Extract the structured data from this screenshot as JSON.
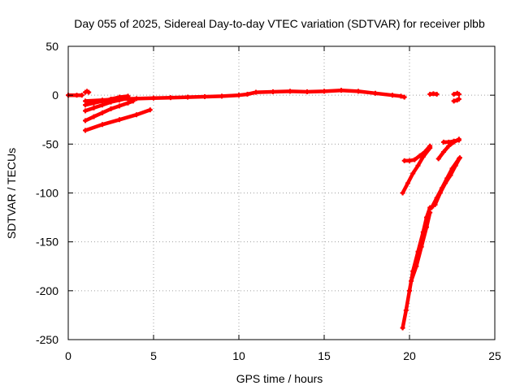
{
  "chart_data": {
    "type": "scatter",
    "title": "Day 055 of 2025, Sidereal Day-to-day VTEC variation (SDTVAR) for receiver plbb",
    "xlabel": "GPS time / hours",
    "ylabel": "SDTVAR / TECUs",
    "xlim": [
      0,
      25
    ],
    "ylim": [
      -250,
      50
    ],
    "xticks": [
      0,
      5,
      10,
      15,
      20,
      25
    ],
    "yticks": [
      50,
      0,
      -50,
      -100,
      -150,
      -200,
      -250
    ],
    "grid": true,
    "color": "#ff0000",
    "series": [
      {
        "values": [
          [
            0.0,
            0
          ],
          [
            0.5,
            0
          ],
          [
            0.8,
            0
          ]
        ]
      },
      {
        "values": [
          [
            1.0,
            3
          ],
          [
            1.1,
            4
          ],
          [
            1.2,
            3
          ]
        ]
      },
      {
        "values": [
          [
            1.0,
            -6
          ],
          [
            2.0,
            -5
          ],
          [
            3.0,
            -4
          ],
          [
            4.0,
            -3.5
          ],
          [
            5.0,
            -3
          ],
          [
            6.0,
            -2.5
          ],
          [
            7.0,
            -2
          ],
          [
            8.0,
            -1.5
          ],
          [
            9.0,
            -1
          ],
          [
            10.0,
            0
          ],
          [
            10.5,
            1
          ],
          [
            11.0,
            3
          ],
          [
            12.0,
            3.5
          ],
          [
            13.0,
            4
          ],
          [
            14.0,
            3.5
          ],
          [
            15.0,
            4
          ],
          [
            16.0,
            5
          ],
          [
            17.0,
            4
          ],
          [
            18.0,
            2
          ],
          [
            19.0,
            0
          ],
          [
            19.5,
            -1
          ],
          [
            19.7,
            -2
          ]
        ]
      },
      {
        "values": [
          [
            1.0,
            -10
          ],
          [
            1.5,
            -8
          ],
          [
            2.0,
            -6
          ],
          [
            2.5,
            -4
          ],
          [
            3.0,
            -2
          ],
          [
            3.5,
            -1
          ]
        ]
      },
      {
        "values": [
          [
            1.0,
            -16
          ],
          [
            1.5,
            -13
          ],
          [
            2.0,
            -10
          ],
          [
            2.5,
            -7
          ],
          [
            3.0,
            -5
          ],
          [
            3.5,
            -3
          ]
        ]
      },
      {
        "values": [
          [
            1.0,
            -26
          ],
          [
            1.5,
            -22
          ],
          [
            2.0,
            -18
          ],
          [
            2.5,
            -14
          ],
          [
            3.0,
            -11
          ],
          [
            3.5,
            -8
          ],
          [
            3.8,
            -6
          ]
        ]
      },
      {
        "values": [
          [
            1.0,
            -36
          ],
          [
            2.0,
            -30
          ],
          [
            3.0,
            -25
          ],
          [
            4.0,
            -20
          ],
          [
            4.8,
            -15
          ]
        ]
      },
      {
        "values": [
          [
            19.6,
            -238
          ],
          [
            19.8,
            -220
          ],
          [
            20.0,
            -200
          ],
          [
            20.2,
            -180
          ],
          [
            20.5,
            -160
          ],
          [
            20.8,
            -140
          ],
          [
            21.0,
            -125
          ],
          [
            21.2,
            -115
          ]
        ]
      },
      {
        "values": [
          [
            20.1,
            -190
          ],
          [
            20.4,
            -175
          ],
          [
            20.7,
            -155
          ],
          [
            21.0,
            -135
          ],
          [
            21.2,
            -120
          ]
        ]
      },
      {
        "values": [
          [
            19.6,
            -100
          ],
          [
            19.9,
            -90
          ],
          [
            20.2,
            -80
          ],
          [
            20.5,
            -72
          ],
          [
            20.8,
            -63
          ],
          [
            21.2,
            -54
          ]
        ]
      },
      {
        "values": [
          [
            19.7,
            -67
          ],
          [
            20.0,
            -67
          ],
          [
            20.3,
            -66
          ],
          [
            20.6,
            -62
          ],
          [
            20.9,
            -58
          ],
          [
            21.2,
            -52
          ]
        ]
      },
      {
        "values": [
          [
            21.3,
            -115
          ],
          [
            21.6,
            -105
          ],
          [
            21.9,
            -95
          ],
          [
            22.2,
            -85
          ],
          [
            22.5,
            -75
          ],
          [
            22.9,
            -65
          ]
        ]
      },
      {
        "values": [
          [
            21.5,
            -112
          ],
          [
            21.8,
            -100
          ],
          [
            22.1,
            -90
          ],
          [
            22.4,
            -82
          ],
          [
            22.7,
            -72
          ],
          [
            22.95,
            -64
          ]
        ]
      },
      {
        "values": [
          [
            21.7,
            -65
          ],
          [
            22.0,
            -58
          ],
          [
            22.3,
            -52
          ],
          [
            22.6,
            -48
          ],
          [
            22.9,
            -45
          ]
        ]
      },
      {
        "values": [
          [
            22.0,
            -48
          ],
          [
            22.3,
            -48
          ],
          [
            22.6,
            -47
          ],
          [
            22.9,
            -46
          ]
        ]
      },
      {
        "values": [
          [
            21.2,
            1
          ],
          [
            21.4,
            1.5
          ],
          [
            21.6,
            1
          ]
        ]
      },
      {
        "values": [
          [
            22.6,
            1
          ],
          [
            22.8,
            2
          ],
          [
            22.9,
            1
          ]
        ]
      },
      {
        "values": [
          [
            22.6,
            -6
          ],
          [
            22.8,
            -5
          ],
          [
            22.9,
            -4
          ]
        ]
      }
    ]
  }
}
